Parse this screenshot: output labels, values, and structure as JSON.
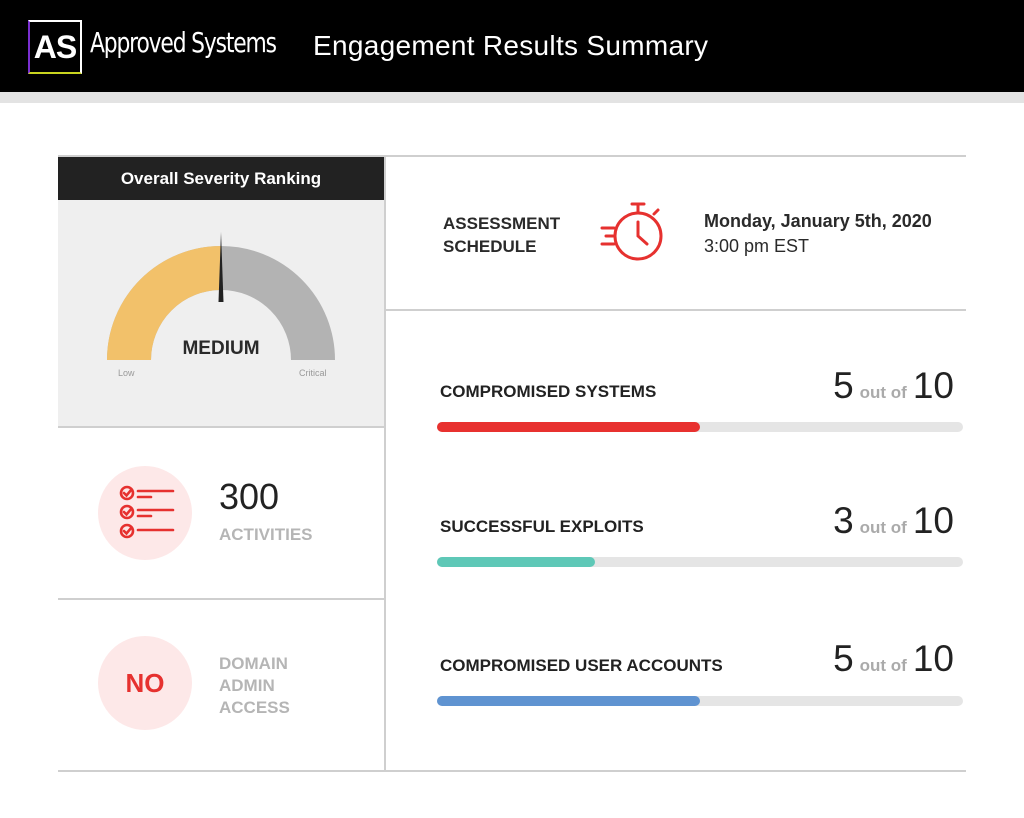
{
  "header": {
    "logo_text": "AS",
    "brand": "Approved Systems",
    "title": "Engagement Results Summary"
  },
  "severity": {
    "title": "Overall Severity Ranking",
    "level": "MEDIUM",
    "low_label": "Low",
    "high_label": "Critical",
    "gauge_fraction": 0.5,
    "colors": {
      "filled": "#f2c16a",
      "empty": "#b3b3b3",
      "needle": "#222222"
    }
  },
  "activities": {
    "count": "300",
    "label": "ACTIVITIES",
    "icon": "checklist-icon"
  },
  "domain_admin": {
    "value": "NO",
    "label_lines": [
      "DOMAIN",
      "ADMIN",
      "ACCESS"
    ]
  },
  "schedule": {
    "label_lines": [
      "ASSESSMENT",
      "SCHEDULE"
    ],
    "icon": "stopwatch-icon",
    "date": "Monday, January 5th, 2020",
    "time": "3:00 pm EST"
  },
  "metrics": [
    {
      "label": "COMPROMISED SYSTEMS",
      "value": "5",
      "of_text": "out of",
      "total": "10",
      "fraction": 0.5,
      "color": "#e8312f"
    },
    {
      "label": "SUCCESSFUL EXPLOITS",
      "value": "3",
      "of_text": "out of",
      "total": "10",
      "fraction": 0.3,
      "color": "#5ec8b7"
    },
    {
      "label": "COMPROMISED USER ACCOUNTS",
      "value": "5",
      "of_text": "out of",
      "total": "10",
      "fraction": 0.5,
      "color": "#5f93d1"
    }
  ],
  "accent_color": "#e6312f"
}
